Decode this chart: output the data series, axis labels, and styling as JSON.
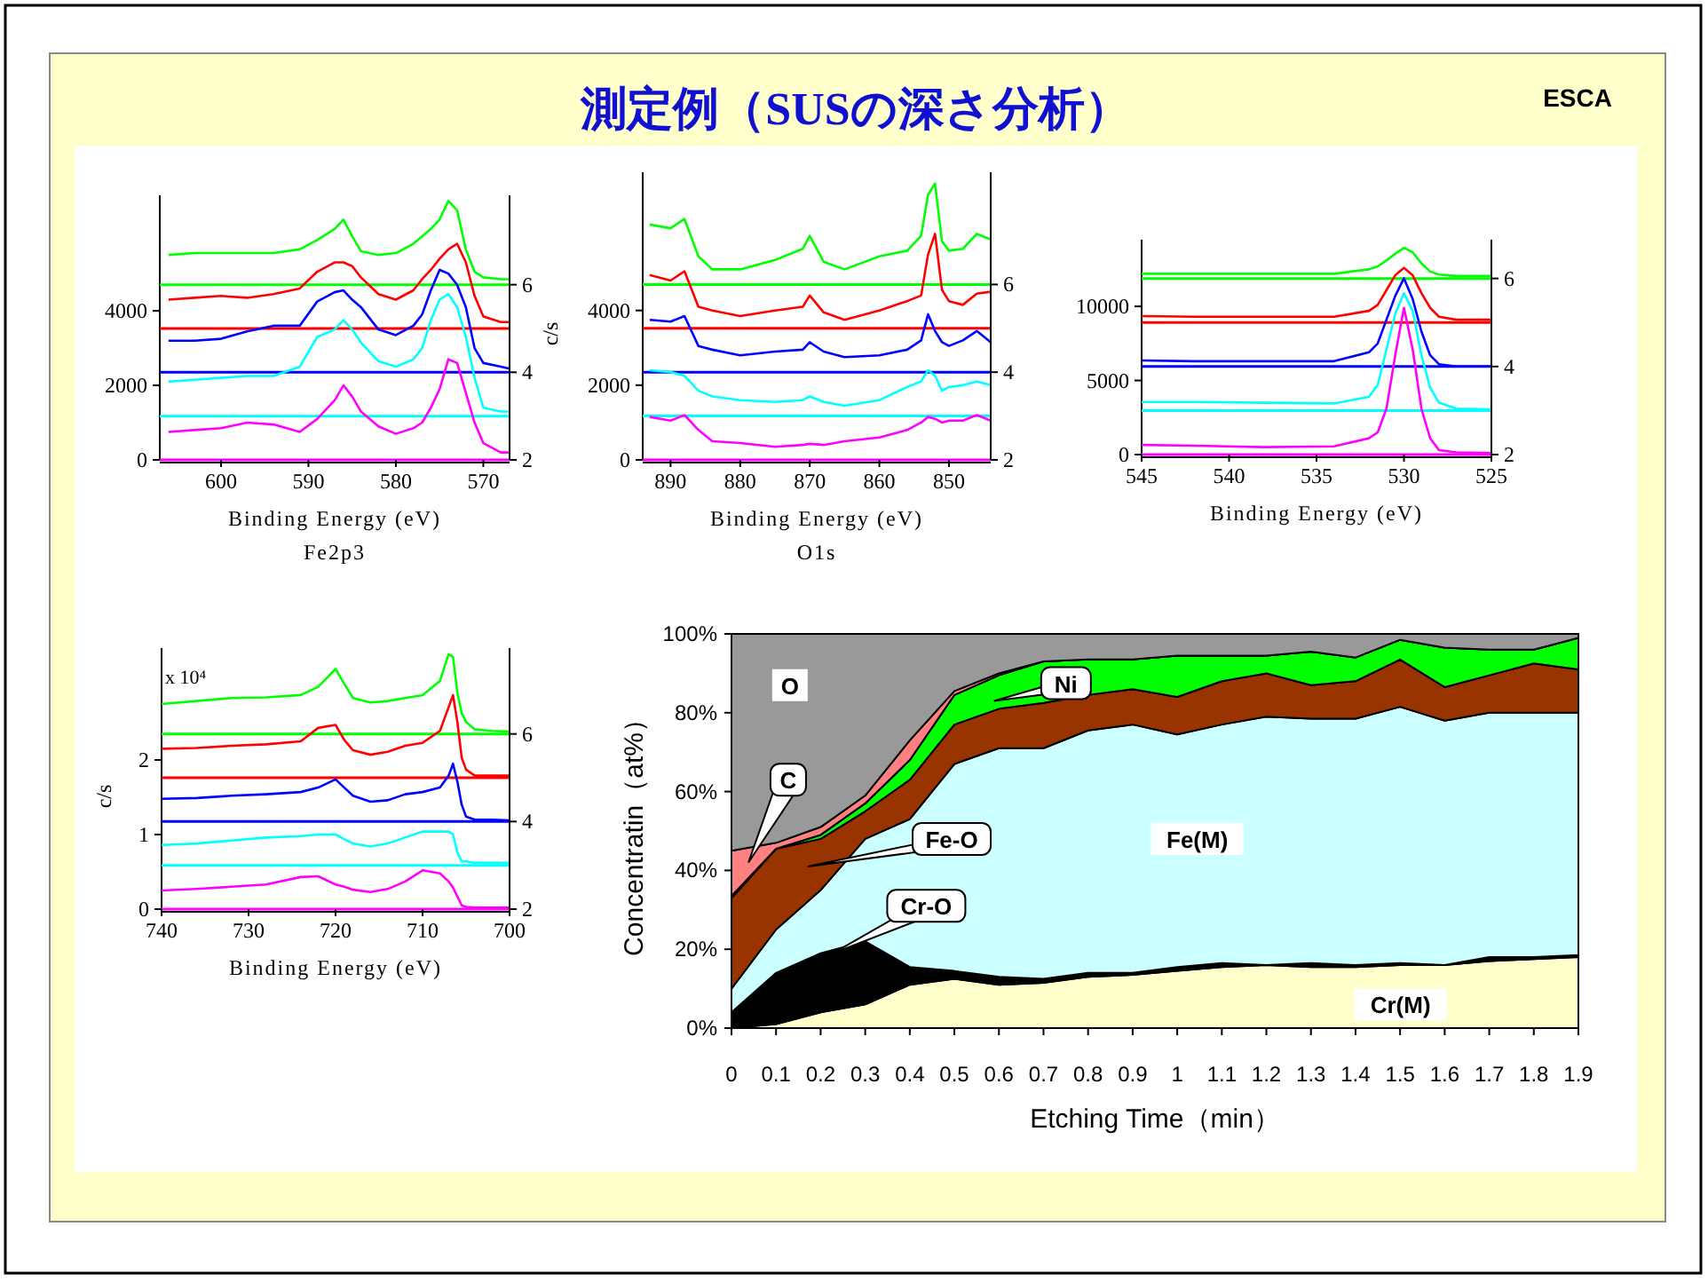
{
  "chart_data": [
    {
      "type": "other",
      "title": "測定例（SUSの深さ分析）",
      "annotations": [
        "ESCA"
      ]
    },
    {
      "type": "line",
      "title": "Fe2p3",
      "xlabel": "Binding Energy (eV)",
      "xlim": [
        607,
        567
      ],
      "xticks": [
        600,
        590,
        580,
        570
      ],
      "ylim": [
        0,
        7100
      ],
      "yticks": [
        0,
        2000,
        4000
      ],
      "y2lim": [
        2,
        8.04
      ],
      "y2ticks": [
        2,
        4,
        6
      ],
      "x": [
        606,
        603,
        600,
        597,
        594,
        591,
        589,
        587,
        586,
        585,
        584,
        582,
        580,
        578,
        577,
        576,
        575,
        574,
        573,
        572,
        571,
        570,
        568,
        567
      ],
      "series": [
        {
          "color": "#ff00ff",
          "values": [
            750,
            800,
            850,
            1000,
            950,
            750,
            1100,
            1600,
            2000,
            1700,
            1300,
            900,
            700,
            850,
            1000,
            1400,
            1900,
            2700,
            2600,
            1800,
            1000,
            450,
            200,
            200
          ]
        },
        {
          "color": "#00ffff",
          "values": [
            2100,
            2150,
            2200,
            2250,
            2250,
            2500,
            3300,
            3500,
            3750,
            3500,
            3150,
            2650,
            2500,
            2700,
            3000,
            3750,
            4300,
            4450,
            4100,
            3300,
            2200,
            1400,
            1300,
            1300
          ]
        },
        {
          "color": "#0000ff",
          "values": [
            3200,
            3200,
            3250,
            3450,
            3600,
            3600,
            4250,
            4500,
            4550,
            4300,
            4100,
            3500,
            3350,
            3600,
            3900,
            4550,
            5100,
            5000,
            4700,
            4100,
            3000,
            2600,
            2500,
            2450
          ]
        },
        {
          "color": "#ff0000",
          "values": [
            4300,
            4350,
            4400,
            4350,
            4450,
            4600,
            5050,
            5300,
            5300,
            5200,
            4900,
            4450,
            4300,
            4550,
            4850,
            5100,
            5400,
            5650,
            5800,
            5300,
            4400,
            3850,
            3700,
            3700
          ]
        },
        {
          "color": "#00ff00",
          "values": [
            5500,
            5550,
            5550,
            5550,
            5550,
            5650,
            5900,
            6200,
            6450,
            6000,
            5600,
            5500,
            5550,
            5800,
            6000,
            6200,
            6450,
            6950,
            6700,
            5650,
            5050,
            4900,
            4850,
            4850
          ]
        }
      ],
      "ref_lines": [
        {
          "axis": "y2",
          "value": 2,
          "color": "#ff00ff"
        },
        {
          "axis": "y2",
          "value": 3,
          "color": "#00ffff"
        },
        {
          "axis": "y2",
          "value": 4,
          "color": "#0000ff"
        },
        {
          "axis": "y2",
          "value": 5,
          "color": "#ff0000"
        },
        {
          "axis": "y2",
          "value": 6,
          "color": "#00ff00"
        }
      ]
    },
    {
      "type": "line",
      "title": "O1s",
      "xlabel": "Binding Energy (eV)",
      "ylabel": "c/s",
      "xlim": [
        894,
        844
      ],
      "xticks": [
        890,
        880,
        870,
        860,
        850
      ],
      "ylim": [
        0,
        7700
      ],
      "yticks": [
        0,
        2000,
        4000
      ],
      "y2lim": [
        2,
        8.56
      ],
      "y2ticks": [
        2,
        4,
        6
      ],
      "x": [
        893,
        890,
        888,
        886,
        884,
        880,
        875,
        871,
        870,
        868,
        865,
        860,
        856,
        854,
        853,
        852,
        851,
        850,
        848,
        846,
        844
      ],
      "series": [
        {
          "color": "#ff00ff",
          "values": [
            1150,
            1050,
            1200,
            800,
            500,
            450,
            350,
            400,
            430,
            400,
            500,
            600,
            800,
            1000,
            1150,
            1100,
            1000,
            1050,
            1050,
            1200,
            1050
          ]
        },
        {
          "color": "#00ffff",
          "values": [
            2400,
            2350,
            2250,
            1850,
            1700,
            1600,
            1550,
            1600,
            1700,
            1550,
            1450,
            1600,
            1950,
            2100,
            2400,
            2250,
            1850,
            1950,
            2000,
            2100,
            2000
          ]
        },
        {
          "color": "#0000ff",
          "values": [
            3750,
            3700,
            3850,
            3050,
            2950,
            2800,
            2900,
            2950,
            3150,
            2900,
            2750,
            2800,
            2950,
            3200,
            3900,
            3450,
            3150,
            3050,
            3200,
            3450,
            3150
          ]
        },
        {
          "color": "#ff0000",
          "values": [
            4950,
            4800,
            5050,
            4100,
            4000,
            3850,
            4000,
            4100,
            4400,
            3950,
            3750,
            4000,
            4250,
            4400,
            5500,
            6050,
            4550,
            4250,
            4150,
            4450,
            4500
          ]
        },
        {
          "color": "#00ff00",
          "values": [
            6300,
            6200,
            6450,
            5450,
            5100,
            5100,
            5350,
            5650,
            6000,
            5300,
            5100,
            5450,
            5600,
            6000,
            7100,
            7400,
            5850,
            5600,
            5650,
            6050,
            5900
          ]
        }
      ],
      "ref_lines": [
        {
          "axis": "y2",
          "value": 2,
          "color": "#ff00ff"
        },
        {
          "axis": "y2",
          "value": 3,
          "color": "#00ffff"
        },
        {
          "axis": "y2",
          "value": 4,
          "color": "#0000ff"
        },
        {
          "axis": "y2",
          "value": 5,
          "color": "#ff0000"
        },
        {
          "axis": "y2",
          "value": 6,
          "color": "#00ff00"
        }
      ]
    },
    {
      "type": "line",
      "xlabel": "Binding Energy (eV)",
      "xlim": [
        545,
        525
      ],
      "xticks": [
        545,
        540,
        535,
        530,
        525
      ],
      "ylim": [
        0,
        14500
      ],
      "yticks": [
        0,
        5000,
        10000
      ],
      "y2lim": [
        2,
        6.88
      ],
      "y2ticks": [
        2,
        4,
        6
      ],
      "x": [
        545,
        542,
        538,
        534,
        532,
        531.5,
        531,
        530.5,
        530,
        529.5,
        529,
        528.5,
        528,
        527,
        525
      ],
      "series": [
        {
          "color": "#ff00ff",
          "values": [
            650,
            600,
            500,
            550,
            1100,
            1500,
            3100,
            6700,
            9900,
            7100,
            3100,
            1100,
            300,
            150,
            100
          ]
        },
        {
          "color": "#00ffff",
          "values": [
            3550,
            3550,
            3500,
            3450,
            3900,
            4700,
            7100,
            9500,
            10900,
            9700,
            6700,
            4500,
            3500,
            3100,
            3050
          ]
        },
        {
          "color": "#0000ff",
          "values": [
            6350,
            6300,
            6300,
            6300,
            6900,
            7500,
            9100,
            10700,
            11900,
            10500,
            8300,
            6700,
            6100,
            5950,
            5950
          ]
        },
        {
          "color": "#ff0000",
          "values": [
            9350,
            9300,
            9300,
            9300,
            9700,
            10100,
            11100,
            12100,
            12600,
            12100,
            10900,
            9900,
            9300,
            9100,
            9100
          ]
        },
        {
          "color": "#00ff00",
          "values": [
            12200,
            12200,
            12200,
            12200,
            12500,
            12700,
            13100,
            13550,
            13950,
            13650,
            12900,
            12350,
            12150,
            12050,
            12050
          ]
        }
      ],
      "ref_lines": [
        {
          "axis": "y2",
          "value": 2,
          "color": "#ff00ff"
        },
        {
          "axis": "y2",
          "value": 3,
          "color": "#00ffff"
        },
        {
          "axis": "y2",
          "value": 4,
          "color": "#0000ff"
        },
        {
          "axis": "y2",
          "value": 5,
          "color": "#ff0000"
        },
        {
          "axis": "y2",
          "value": 6,
          "color": "#00ff00"
        }
      ]
    },
    {
      "type": "line",
      "xlabel": "Binding Energy (eV)",
      "ylabel": "c/s",
      "annotations": [
        "x 10⁴"
      ],
      "xlim": [
        740,
        700
      ],
      "xticks": [
        740,
        730,
        720,
        710,
        700
      ],
      "ylim": [
        0,
        3.5
      ],
      "yticks": [
        0,
        1,
        2
      ],
      "y2lim": [
        2,
        7.96
      ],
      "y2ticks": [
        2,
        4,
        6
      ],
      "x": [
        740,
        736,
        732,
        728,
        724,
        722,
        720,
        719,
        718,
        716,
        714,
        712,
        710,
        708,
        707,
        706.5,
        706,
        705.5,
        705,
        704,
        702,
        700
      ],
      "series": [
        {
          "color": "#ff00ff",
          "values": [
            0.25,
            0.27,
            0.3,
            0.33,
            0.43,
            0.44,
            0.33,
            0.3,
            0.26,
            0.23,
            0.27,
            0.37,
            0.52,
            0.48,
            0.37,
            0.29,
            0.17,
            0.05,
            0.03,
            0.02,
            0.02,
            0.02
          ]
        },
        {
          "color": "#00ffff",
          "values": [
            0.86,
            0.88,
            0.92,
            0.96,
            0.98,
            1.0,
            1.0,
            0.94,
            0.88,
            0.84,
            0.88,
            0.96,
            1.04,
            1.04,
            1.04,
            1.0,
            0.76,
            0.64,
            0.64,
            0.62,
            0.62,
            0.62
          ]
        },
        {
          "color": "#0000ff",
          "values": [
            1.48,
            1.49,
            1.52,
            1.54,
            1.57,
            1.63,
            1.74,
            1.63,
            1.52,
            1.44,
            1.46,
            1.54,
            1.57,
            1.63,
            1.79,
            1.95,
            1.71,
            1.4,
            1.24,
            1.2,
            1.2,
            1.19
          ]
        },
        {
          "color": "#ff0000",
          "values": [
            2.15,
            2.16,
            2.19,
            2.21,
            2.25,
            2.43,
            2.47,
            2.27,
            2.13,
            2.07,
            2.11,
            2.19,
            2.23,
            2.39,
            2.71,
            2.87,
            2.51,
            2.03,
            1.87,
            1.79,
            1.79,
            1.79
          ]
        },
        {
          "color": "#00ff00",
          "values": [
            2.75,
            2.79,
            2.83,
            2.84,
            2.87,
            2.98,
            3.22,
            3.02,
            2.83,
            2.77,
            2.79,
            2.83,
            2.87,
            3.06,
            3.42,
            3.38,
            2.9,
            2.63,
            2.51,
            2.41,
            2.39,
            2.38
          ]
        }
      ],
      "ref_lines": [
        {
          "axis": "y2",
          "value": 2,
          "color": "#ff00ff"
        },
        {
          "axis": "y2",
          "value": 3,
          "color": "#00ffff"
        },
        {
          "axis": "y2",
          "value": 4,
          "color": "#0000ff"
        },
        {
          "axis": "y2",
          "value": 5,
          "color": "#ff0000"
        },
        {
          "axis": "y2",
          "value": 6,
          "color": "#00ff00"
        }
      ]
    },
    {
      "type": "area",
      "stacked": true,
      "xlabel": "Etching Time（min）",
      "ylabel": "Concentratin（at%）",
      "x": [
        0,
        0.1,
        0.2,
        0.3,
        0.4,
        0.5,
        0.6,
        0.7,
        0.8,
        0.9,
        1,
        1.1,
        1.2,
        1.3,
        1.4,
        1.5,
        1.6,
        1.7,
        1.8,
        1.9
      ],
      "xlim": [
        0,
        1.9
      ],
      "xticks": [
        0,
        0.1,
        0.2,
        0.3,
        0.4,
        0.5,
        0.6,
        0.7,
        0.8,
        0.9,
        1,
        1.1,
        1.2,
        1.3,
        1.4,
        1.5,
        1.6,
        1.7,
        1.8,
        1.9
      ],
      "ylim": [
        0,
        100
      ],
      "yticks": [
        {
          "value": 0,
          "label": "0%"
        },
        {
          "value": 20,
          "label": "20%"
        },
        {
          "value": 40,
          "label": "40%"
        },
        {
          "value": 60,
          "label": "60%"
        },
        {
          "value": 80,
          "label": "80%"
        },
        {
          "value": 100,
          "label": "100%"
        }
      ],
      "series": [
        {
          "name": "Cr(M)",
          "color": "#ffffcc",
          "values": [
            0,
            1,
            4,
            6,
            11,
            12.5,
            11,
            11.5,
            13,
            13.5,
            14.5,
            15.5,
            16,
            15.5,
            15.5,
            16,
            16,
            17,
            17.5,
            18
          ]
        },
        {
          "name": "Cr-O",
          "color": "#000000",
          "values": [
            4,
            13,
            15,
            16,
            4.5,
            2,
            2,
            1,
            1,
            0.5,
            1,
            1,
            0,
            1,
            0.5,
            0.5,
            0,
            1,
            0.5,
            0.5
          ]
        },
        {
          "name": "Fe(M)",
          "color": "#ccffff",
          "values": [
            6,
            11,
            16,
            26,
            37.5,
            52.5,
            58,
            58.5,
            61.5,
            63,
            59,
            60.5,
            63,
            62,
            62.5,
            65,
            62,
            62,
            62,
            61.5
          ]
        },
        {
          "name": "Fe-O",
          "color": "#993300",
          "values": [
            23,
            20.5,
            13,
            7,
            10,
            10,
            10,
            11.5,
            9,
            9,
            9.5,
            11,
            11,
            8.5,
            9.5,
            12,
            8.5,
            9.5,
            12.5,
            11
          ]
        },
        {
          "name": "Ni",
          "color": "#00ff00",
          "values": [
            0.5,
            0,
            1,
            2,
            5,
            7.5,
            8.5,
            10.5,
            9,
            7.5,
            10.5,
            6.5,
            4.5,
            8.5,
            6,
            5,
            10,
            6.5,
            3.5,
            8
          ]
        },
        {
          "name": "C",
          "color": "#ff8080",
          "values": [
            11.5,
            1.5,
            2,
            2,
            5,
            1,
            0.5,
            0,
            0,
            0,
            0,
            0,
            0,
            0,
            0,
            0,
            0,
            0,
            0,
            0
          ]
        },
        {
          "name": "O",
          "color": "#999999",
          "values": [
            55,
            53,
            49,
            41,
            27,
            14.5,
            10,
            7,
            6.5,
            6.5,
            5.5,
            5.5,
            5.5,
            4.5,
            6,
            1.5,
            3.5,
            4,
            4,
            1
          ]
        }
      ]
    }
  ]
}
